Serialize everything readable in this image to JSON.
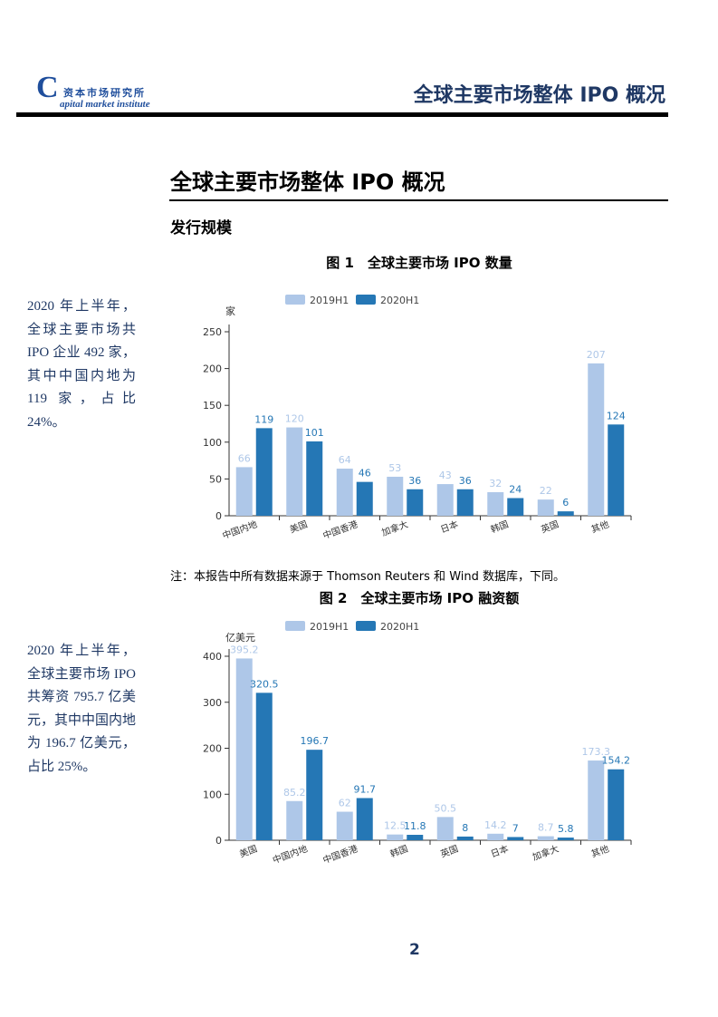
{
  "header": {
    "logo_letter": "C",
    "logo_cn": "资本市场研究所",
    "logo_en": "apital market institute",
    "title": "全球主要市场整体 IPO 概况"
  },
  "section_title": "全球主要市场整体 IPO 概况",
  "subsection": "发行规模",
  "sidebar": [
    "2020 年上半年，全球主要市场共 IPO 企业 492 家，其中中国内地为 119 家，占比 24%。",
    "2020 年上半年，全球主要市场 IPO 共筹资 795.7 亿美元，其中中国内地为 196.7 亿美元，占比 25%。"
  ],
  "note": "注：本报告中所有数据来源于 Thomson Reuters 和 Wind 数据库，下同。",
  "page_number": "2",
  "chart_data": [
    {
      "type": "bar",
      "title": "图 1　全球主要市场 IPO 数量",
      "y_label": "家",
      "categories": [
        "中国内地",
        "美国",
        "中国香港",
        "加拿大",
        "日本",
        "韩国",
        "英国",
        "其他"
      ],
      "series": [
        {
          "name": "2019H1",
          "color": "#aec7e8",
          "values": [
            66,
            120,
            64,
            53,
            43,
            32,
            22,
            207
          ]
        },
        {
          "name": "2020H1",
          "color": "#2577b5",
          "values": [
            119,
            101,
            46,
            36,
            36,
            24,
            6,
            124
          ]
        }
      ],
      "ylim": [
        0,
        250
      ],
      "yticks": [
        0,
        50,
        100,
        150,
        200,
        250
      ]
    },
    {
      "type": "bar",
      "title": "图 2　全球主要市场 IPO 融资额",
      "y_label": "亿美元",
      "categories": [
        "美国",
        "中国内地",
        "中国香港",
        "韩国",
        "英国",
        "日本",
        "加拿大",
        "其他"
      ],
      "series": [
        {
          "name": "2019H1",
          "color": "#aec7e8",
          "values": [
            395.2,
            85.2,
            62,
            12.5,
            50.5,
            14.2,
            8.7,
            173.3
          ]
        },
        {
          "name": "2020H1",
          "color": "#2577b5",
          "values": [
            320.5,
            196.7,
            91.7,
            11.8,
            8,
            7,
            5.8,
            154.2
          ]
        }
      ],
      "ylim": [
        0,
        400
      ],
      "yticks": [
        0,
        100,
        200,
        300,
        400
      ]
    }
  ]
}
